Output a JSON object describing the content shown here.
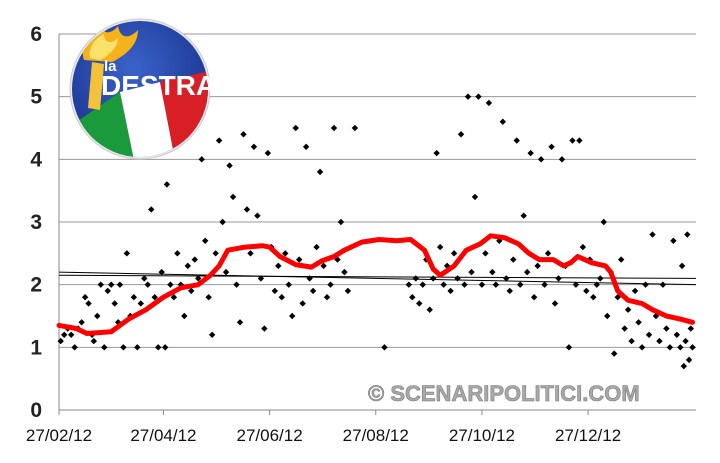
{
  "chart_data": {
    "type": "scatter",
    "x_axis": {
      "kind": "date",
      "range": [
        "2012-02-27",
        "2013-02-27"
      ],
      "tick_labels": [
        "27/02/12",
        "27/04/12",
        "27/06/12",
        "27/08/12",
        "27/10/12",
        "27/12/12"
      ]
    },
    "y_axis": {
      "range": [
        0,
        6
      ],
      "tick_labels": [
        "0",
        "1",
        "2",
        "3",
        "4",
        "5",
        "6"
      ]
    },
    "grid": "horizontal",
    "colors": {
      "points": "#000000",
      "moving_average": "#ff0000",
      "trend": "#000000",
      "grid": "#999999"
    },
    "points": [
      [
        "2012-02-28",
        1.1
      ],
      [
        "2012-03-01",
        1.2
      ],
      [
        "2012-03-03",
        1.3
      ],
      [
        "2012-03-05",
        1.2
      ],
      [
        "2012-03-07",
        1.0
      ],
      [
        "2012-03-09",
        1.3
      ],
      [
        "2012-03-11",
        1.4
      ],
      [
        "2012-03-13",
        1.8
      ],
      [
        "2012-03-15",
        1.7
      ],
      [
        "2012-03-17",
        1.2
      ],
      [
        "2012-03-18",
        1.1
      ],
      [
        "2012-03-20",
        1.5
      ],
      [
        "2012-03-22",
        2.0
      ],
      [
        "2012-03-24",
        1.0
      ],
      [
        "2012-03-26",
        1.9
      ],
      [
        "2012-03-28",
        2.0
      ],
      [
        "2012-03-30",
        1.7
      ],
      [
        "2012-04-01",
        1.4
      ],
      [
        "2012-04-02",
        2.0
      ],
      [
        "2012-04-04",
        1.0
      ],
      [
        "2012-04-06",
        2.5
      ],
      [
        "2012-04-08",
        1.5
      ],
      [
        "2012-04-10",
        1.8
      ],
      [
        "2012-04-12",
        1.0
      ],
      [
        "2012-04-14",
        1.7
      ],
      [
        "2012-04-16",
        2.1
      ],
      [
        "2012-04-18",
        2.0
      ],
      [
        "2012-04-20",
        3.2
      ],
      [
        "2012-04-22",
        1.8
      ],
      [
        "2012-04-24",
        1.0
      ],
      [
        "2012-04-26",
        2.2
      ],
      [
        "2012-04-28",
        1.0
      ],
      [
        "2012-04-29",
        3.6
      ],
      [
        "2012-05-01",
        2.0
      ],
      [
        "2012-05-03",
        1.8
      ],
      [
        "2012-05-05",
        2.5
      ],
      [
        "2012-05-07",
        2.0
      ],
      [
        "2012-05-09",
        1.5
      ],
      [
        "2012-05-11",
        2.3
      ],
      [
        "2012-05-13",
        1.9
      ],
      [
        "2012-05-15",
        2.4
      ],
      [
        "2012-05-17",
        2.1
      ],
      [
        "2012-05-19",
        4.0
      ],
      [
        "2012-05-21",
        2.7
      ],
      [
        "2012-05-23",
        1.8
      ],
      [
        "2012-05-25",
        1.2
      ],
      [
        "2012-05-27",
        2.5
      ],
      [
        "2012-05-29",
        4.3
      ],
      [
        "2012-05-31",
        3.0
      ],
      [
        "2012-06-02",
        2.2
      ],
      [
        "2012-06-04",
        3.9
      ],
      [
        "2012-06-06",
        3.4
      ],
      [
        "2012-06-08",
        2.0
      ],
      [
        "2012-06-10",
        1.4
      ],
      [
        "2012-06-12",
        4.4
      ],
      [
        "2012-06-14",
        3.2
      ],
      [
        "2012-06-16",
        2.5
      ],
      [
        "2012-06-18",
        4.2
      ],
      [
        "2012-06-20",
        3.1
      ],
      [
        "2012-06-22",
        2.1
      ],
      [
        "2012-06-24",
        1.3
      ],
      [
        "2012-06-26",
        4.1
      ],
      [
        "2012-06-28",
        2.6
      ],
      [
        "2012-06-30",
        1.9
      ],
      [
        "2012-07-02",
        2.3
      ],
      [
        "2012-07-04",
        1.8
      ],
      [
        "2012-07-06",
        2.5
      ],
      [
        "2012-07-08",
        2.0
      ],
      [
        "2012-07-10",
        1.5
      ],
      [
        "2012-07-12",
        4.5
      ],
      [
        "2012-07-14",
        2.4
      ],
      [
        "2012-07-16",
        1.7
      ],
      [
        "2012-07-18",
        4.2
      ],
      [
        "2012-07-20",
        2.1
      ],
      [
        "2012-07-22",
        1.9
      ],
      [
        "2012-07-24",
        2.6
      ],
      [
        "2012-07-26",
        3.8
      ],
      [
        "2012-07-28",
        2.3
      ],
      [
        "2012-07-30",
        1.8
      ],
      [
        "2012-08-01",
        2.0
      ],
      [
        "2012-08-03",
        4.5
      ],
      [
        "2012-08-05",
        2.4
      ],
      [
        "2012-08-07",
        3.0
      ],
      [
        "2012-08-09",
        2.2
      ],
      [
        "2012-08-11",
        1.9
      ],
      [
        "2012-08-15",
        4.5
      ],
      [
        "2012-09-01",
        1.0
      ],
      [
        "2012-09-15",
        2.0
      ],
      [
        "2012-09-17",
        1.8
      ],
      [
        "2012-09-19",
        2.1
      ],
      [
        "2012-09-21",
        1.7
      ],
      [
        "2012-09-23",
        2.0
      ],
      [
        "2012-09-25",
        2.4
      ],
      [
        "2012-09-27",
        1.6
      ],
      [
        "2012-09-29",
        2.1
      ],
      [
        "2012-10-01",
        4.1
      ],
      [
        "2012-10-03",
        2.6
      ],
      [
        "2012-10-05",
        2.0
      ],
      [
        "2012-10-07",
        2.3
      ],
      [
        "2012-10-09",
        1.9
      ],
      [
        "2012-10-11",
        2.5
      ],
      [
        "2012-10-13",
        2.1
      ],
      [
        "2012-10-15",
        4.4
      ],
      [
        "2012-10-17",
        2.0
      ],
      [
        "2012-10-19",
        5.0
      ],
      [
        "2012-10-21",
        2.2
      ],
      [
        "2012-10-23",
        3.4
      ],
      [
        "2012-10-25",
        5.0
      ],
      [
        "2012-10-27",
        2.0
      ],
      [
        "2012-10-29",
        2.5
      ],
      [
        "2012-10-31",
        4.9
      ],
      [
        "2012-11-02",
        2.2
      ],
      [
        "2012-11-04",
        2.0
      ],
      [
        "2012-11-06",
        2.7
      ],
      [
        "2012-11-08",
        4.6
      ],
      [
        "2012-11-10",
        2.1
      ],
      [
        "2012-11-12",
        1.9
      ],
      [
        "2012-11-14",
        2.4
      ],
      [
        "2012-11-16",
        4.3
      ],
      [
        "2012-11-18",
        2.0
      ],
      [
        "2012-11-20",
        3.1
      ],
      [
        "2012-11-22",
        2.2
      ],
      [
        "2012-11-24",
        4.1
      ],
      [
        "2012-11-26",
        1.8
      ],
      [
        "2012-11-28",
        2.3
      ],
      [
        "2012-11-30",
        4.0
      ],
      [
        "2012-12-02",
        2.0
      ],
      [
        "2012-12-04",
        2.5
      ],
      [
        "2012-12-06",
        4.2
      ],
      [
        "2012-12-08",
        1.7
      ],
      [
        "2012-12-10",
        2.1
      ],
      [
        "2012-12-12",
        4.0
      ],
      [
        "2012-12-14",
        2.3
      ],
      [
        "2012-12-16",
        1.0
      ],
      [
        "2012-12-18",
        4.3
      ],
      [
        "2012-12-20",
        2.0
      ],
      [
        "2012-12-22",
        4.3
      ],
      [
        "2012-12-24",
        2.6
      ],
      [
        "2012-12-26",
        1.9
      ],
      [
        "2012-12-28",
        2.4
      ],
      [
        "2012-12-30",
        1.8
      ],
      [
        "2013-01-01",
        2.0
      ],
      [
        "2013-01-03",
        2.1
      ],
      [
        "2013-01-05",
        3.0
      ],
      [
        "2013-01-07",
        1.5
      ],
      [
        "2013-01-09",
        2.2
      ],
      [
        "2013-01-11",
        0.9
      ],
      [
        "2013-01-13",
        1.8
      ],
      [
        "2013-01-15",
        2.4
      ],
      [
        "2013-01-17",
        1.3
      ],
      [
        "2013-01-19",
        1.6
      ],
      [
        "2013-01-21",
        1.1
      ],
      [
        "2013-01-23",
        1.9
      ],
      [
        "2013-01-25",
        1.4
      ],
      [
        "2013-01-27",
        1.0
      ],
      [
        "2013-01-29",
        2.0
      ],
      [
        "2013-01-31",
        1.2
      ],
      [
        "2013-02-02",
        2.8
      ],
      [
        "2013-02-04",
        1.5
      ],
      [
        "2013-02-06",
        1.1
      ],
      [
        "2013-02-08",
        2.0
      ],
      [
        "2013-02-10",
        1.3
      ],
      [
        "2013-02-12",
        1.0
      ],
      [
        "2013-02-14",
        2.7
      ],
      [
        "2013-02-16",
        1.2
      ],
      [
        "2013-02-18",
        1.0
      ],
      [
        "2013-02-19",
        2.3
      ],
      [
        "2013-02-20",
        0.7
      ],
      [
        "2013-02-21",
        1.1
      ],
      [
        "2013-02-22",
        2.8
      ],
      [
        "2013-02-23",
        0.8
      ],
      [
        "2013-02-24",
        1.3
      ],
      [
        "2013-02-25",
        1.0
      ]
    ],
    "moving_average": [
      [
        "2012-02-27",
        1.35
      ],
      [
        "2012-03-08",
        1.3
      ],
      [
        "2012-03-14",
        1.22
      ],
      [
        "2012-03-28",
        1.25
      ],
      [
        "2012-04-07",
        1.45
      ],
      [
        "2012-04-17",
        1.6
      ],
      [
        "2012-04-27",
        1.8
      ],
      [
        "2012-05-07",
        1.95
      ],
      [
        "2012-05-17",
        2.0
      ],
      [
        "2012-05-24",
        2.15
      ],
      [
        "2012-05-29",
        2.3
      ],
      [
        "2012-06-03",
        2.55
      ],
      [
        "2012-06-13",
        2.6
      ],
      [
        "2012-06-23",
        2.62
      ],
      [
        "2012-06-27",
        2.6
      ],
      [
        "2012-07-03",
        2.45
      ],
      [
        "2012-07-12",
        2.32
      ],
      [
        "2012-07-21",
        2.28
      ],
      [
        "2012-07-27",
        2.38
      ],
      [
        "2012-08-03",
        2.45
      ],
      [
        "2012-08-09",
        2.55
      ],
      [
        "2012-08-19",
        2.68
      ],
      [
        "2012-08-29",
        2.72
      ],
      [
        "2012-09-08",
        2.7
      ],
      [
        "2012-09-16",
        2.72
      ],
      [
        "2012-09-24",
        2.55
      ],
      [
        "2012-09-29",
        2.25
      ],
      [
        "2012-10-03",
        2.15
      ],
      [
        "2012-10-11",
        2.3
      ],
      [
        "2012-10-18",
        2.55
      ],
      [
        "2012-10-26",
        2.65
      ],
      [
        "2012-11-01",
        2.78
      ],
      [
        "2012-11-09",
        2.75
      ],
      [
        "2012-11-17",
        2.65
      ],
      [
        "2012-11-23",
        2.5
      ],
      [
        "2012-11-29",
        2.4
      ],
      [
        "2012-12-07",
        2.4
      ],
      [
        "2012-12-13",
        2.3
      ],
      [
        "2012-12-17",
        2.35
      ],
      [
        "2012-12-21",
        2.45
      ],
      [
        "2012-12-29",
        2.35
      ],
      [
        "2013-01-06",
        2.3
      ],
      [
        "2013-01-09",
        2.2
      ],
      [
        "2013-01-13",
        1.9
      ],
      [
        "2013-01-19",
        1.75
      ],
      [
        "2013-01-27",
        1.7
      ],
      [
        "2013-02-02",
        1.6
      ],
      [
        "2013-02-10",
        1.5
      ],
      [
        "2013-02-18",
        1.45
      ],
      [
        "2013-02-25",
        1.4
      ]
    ],
    "trend_lines": [
      [
        [
          "2012-02-27",
          2.2
        ],
        [
          "2013-02-27",
          2.0
        ]
      ],
      [
        [
          "2012-02-27",
          2.15
        ],
        [
          "2013-02-27",
          2.1
        ]
      ]
    ]
  },
  "logo": {
    "small_text": "la",
    "big_text": "DESTRA"
  },
  "watermark": "© SCENARIPOLITICI.COM"
}
